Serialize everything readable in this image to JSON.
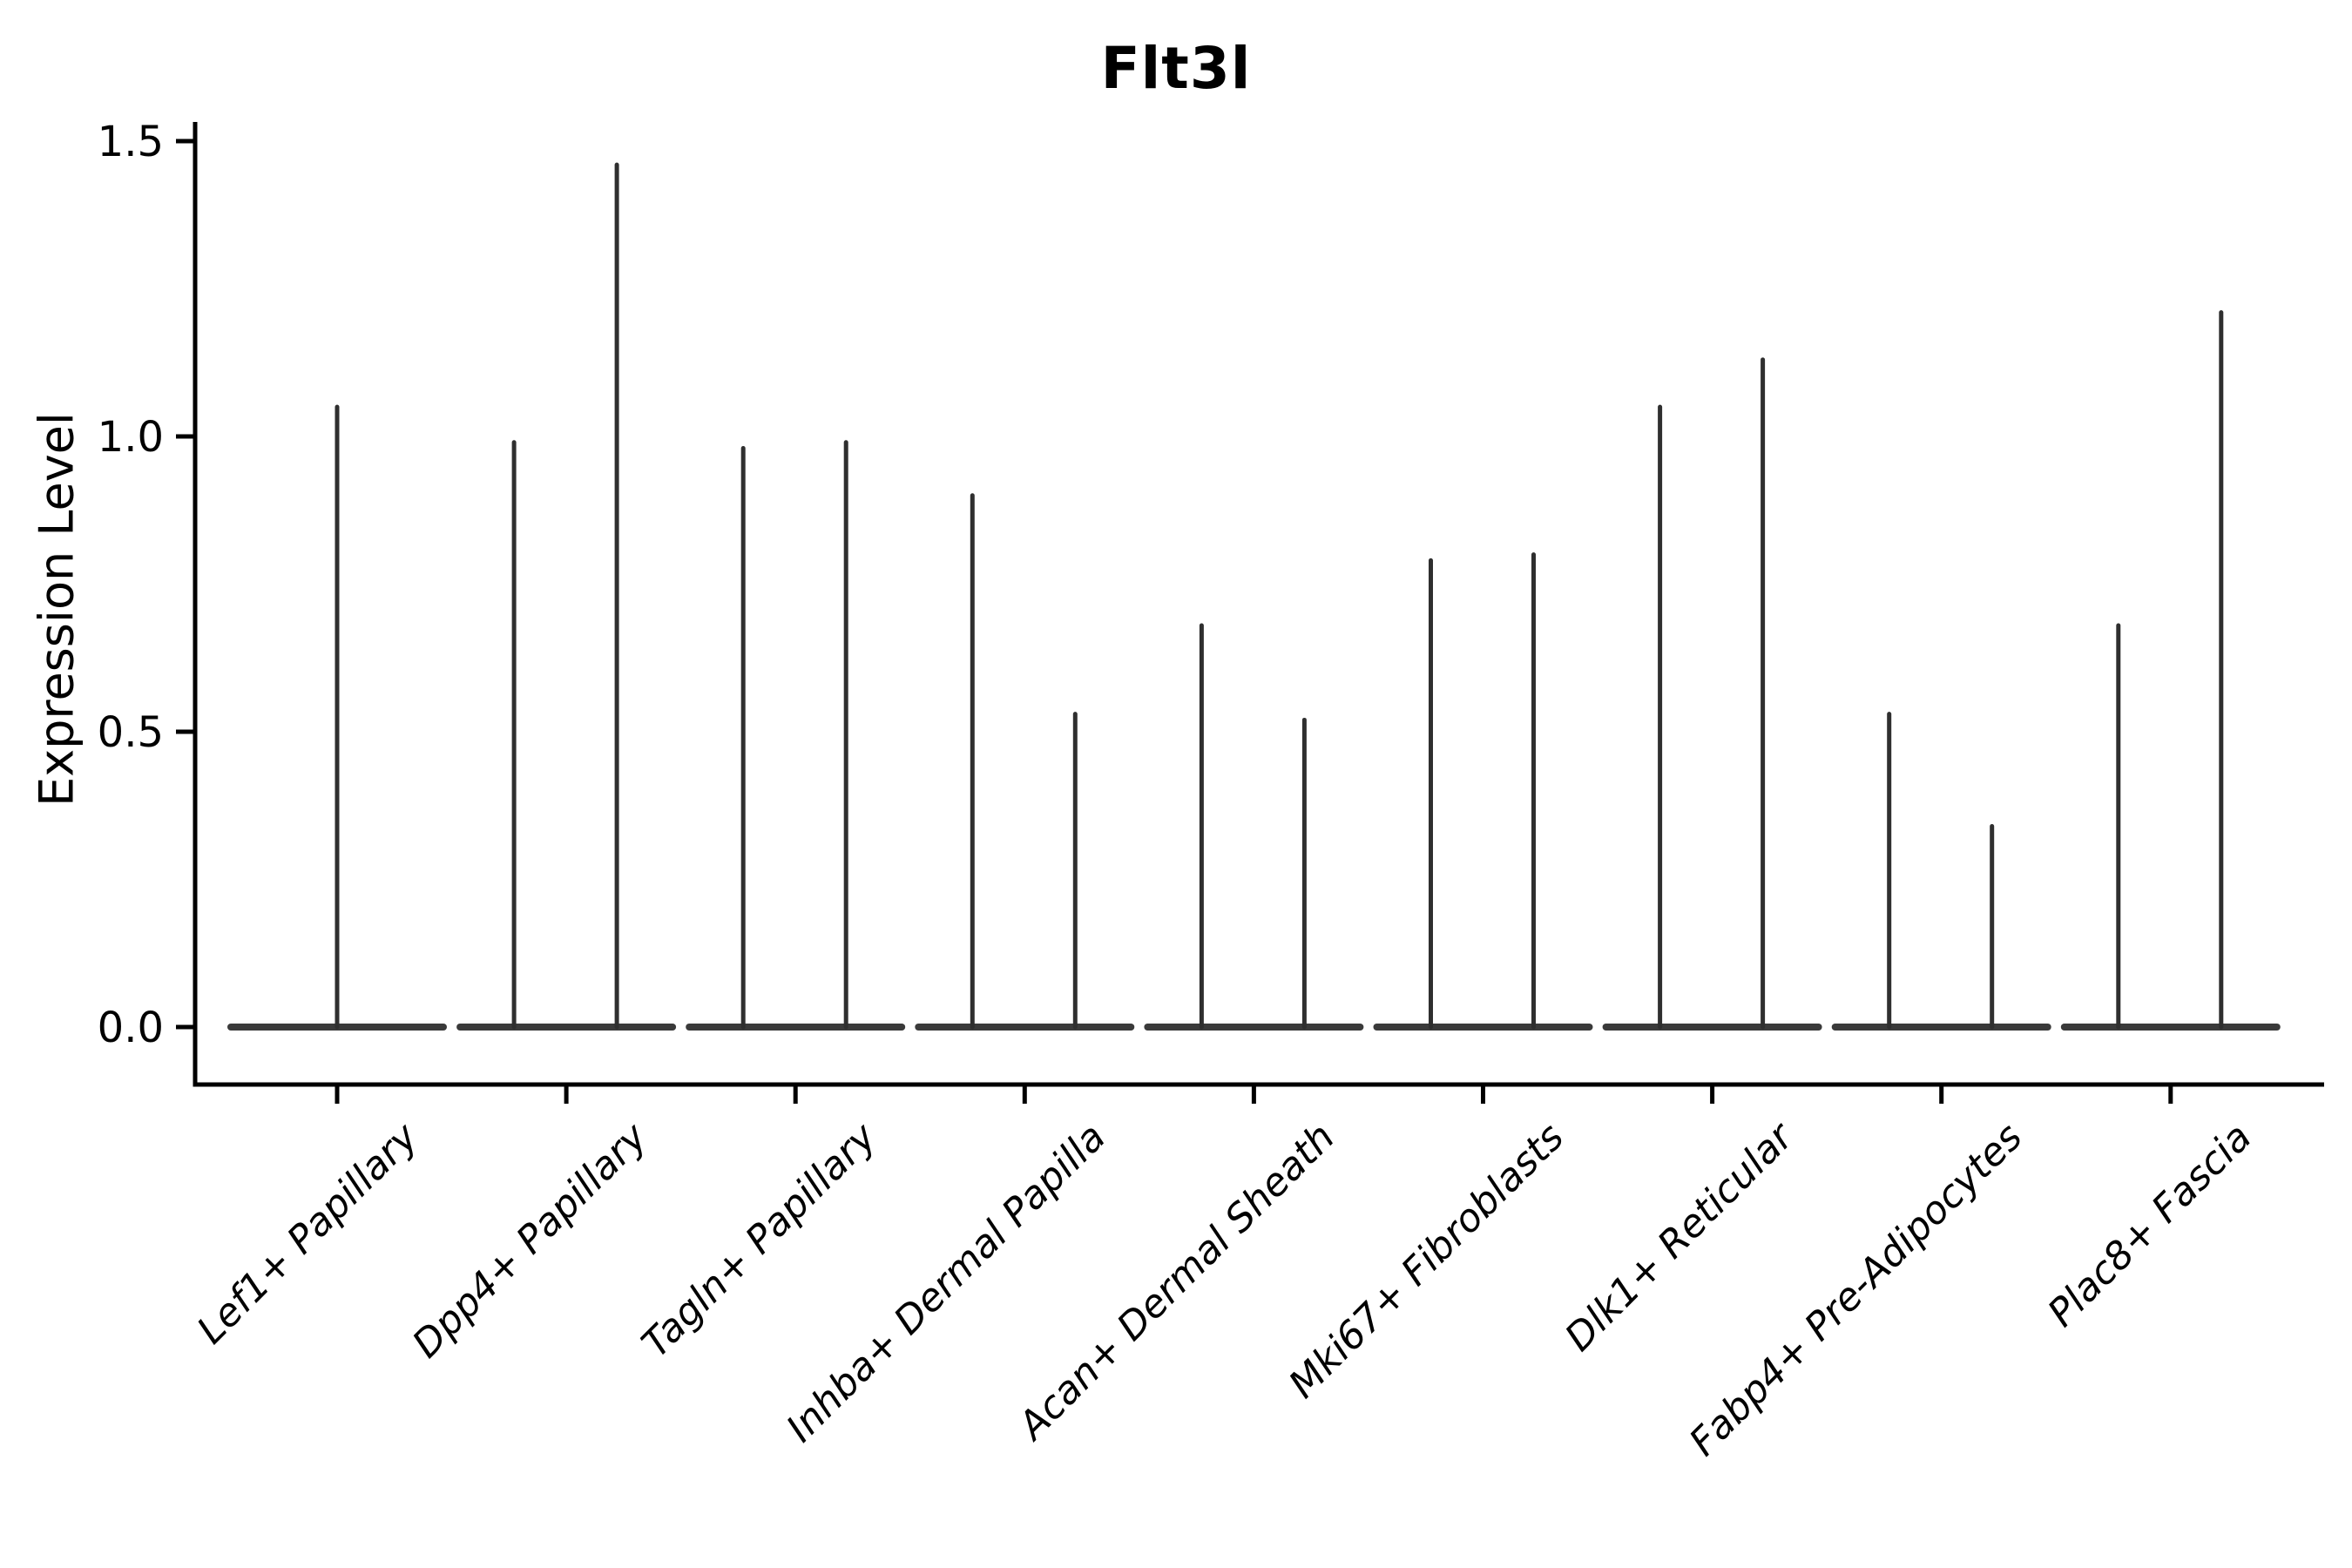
{
  "chart_data": {
    "type": "violin",
    "title": "Flt3l",
    "ylabel": "Expression Level",
    "xlabel": "",
    "categories": [
      "Lef1+ Papillary",
      "Dpp4+ Papillary",
      "Tagln+ Papillary",
      "Inhba+ Dermal Papilla",
      "Acan+ Dermal Sheath",
      "Mki67+ Fibroblasts",
      "Dlk1+ Reticular",
      "Fabp4+ Pre-Adipocytes",
      "Plac8+ Fascia"
    ],
    "spike_values": [
      [
        1.05
      ],
      [
        0.99,
        1.46
      ],
      [
        0.98,
        0.99
      ],
      [
        0.9,
        0.53
      ],
      [
        0.68,
        0.52
      ],
      [
        0.79,
        0.8
      ],
      [
        1.05,
        1.13
      ],
      [
        0.53,
        0.34
      ],
      [
        0.68,
        1.21
      ]
    ],
    "y_ticks": [
      "0.0",
      "0.5",
      "1.0",
      "1.5"
    ],
    "y_tick_values": [
      0,
      0.5,
      1.0,
      1.5
    ],
    "ylim": [
      0,
      1.55
    ],
    "grid": false,
    "legend": null,
    "colors": {
      "violin_line": "#2f2f2f",
      "violin_base": "#3a3a3a",
      "axis": "#000000",
      "text": "#000000"
    }
  }
}
